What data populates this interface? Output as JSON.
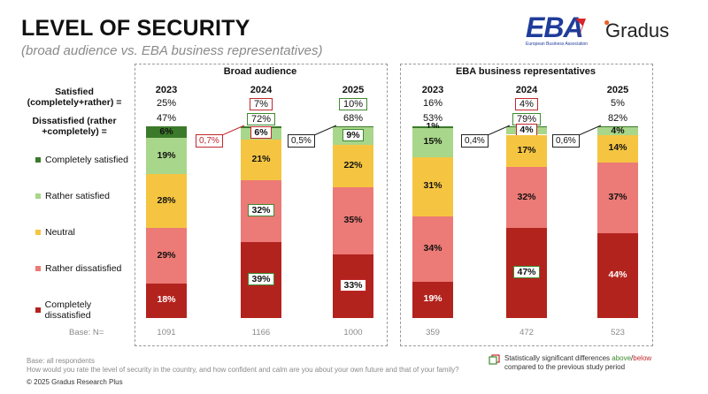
{
  "header": {
    "title": "LEVEL OF SECURITY",
    "subtitle": "(broad audience vs. EBA business representatives)"
  },
  "logos": {
    "eba_letters": "EBA",
    "eba_caption": "European Business Association",
    "gradus": "Gradus"
  },
  "rows": {
    "satisfied_label": "Satisfied (completely+rather) =",
    "dissatisfied_label": "Dissatisfied (rather +completely) =",
    "base_label": "Base: N="
  },
  "colors": {
    "completely_satisfied": "#3b7a2a",
    "rather_satisfied": "#a8d68a",
    "neutral": "#f5c542",
    "rather_dissatisfied": "#ec7a76",
    "completely_dissatisfied": "#b3231e",
    "significant_up": "#3d8b2f",
    "significant_down": "#c0282c"
  },
  "legend": [
    {
      "name": "Completely satisfied",
      "color": "#3b7a2a"
    },
    {
      "name": "Rather satisfied",
      "color": "#a8d68a"
    },
    {
      "name": "Neutral",
      "color": "#f5c542"
    },
    {
      "name": "Rather dissatisfied",
      "color": "#ec7a76"
    },
    {
      "name": "Completely dissatisfied",
      "color": "#b3231e"
    }
  ],
  "chart_data": {
    "type": "bar",
    "stacked": true,
    "units": "%",
    "groups": [
      {
        "name": "Broad audience",
        "bars": [
          {
            "year": "2023",
            "satisfied": "25%",
            "dissatisfied": "47%",
            "base": "1091",
            "values": [
              6,
              19,
              28,
              29,
              18
            ],
            "labels": [
              "6%",
              "19%",
              "28%",
              "29%",
              "18%"
            ],
            "sig": [
              null,
              null,
              null,
              null,
              null
            ],
            "sat_sig": null,
            "dis_sig": null,
            "callout": null
          },
          {
            "year": "2024",
            "satisfied": "7%",
            "dissatisfied": "72%",
            "base": "1166",
            "values": [
              0.7,
              6,
              21,
              32,
              39
            ],
            "labels": [
              "",
              "6%",
              "21%",
              "32%",
              "39%"
            ],
            "sig": [
              null,
              "down",
              null,
              "up",
              "up"
            ],
            "sat_sig": "down",
            "dis_sig": "up",
            "callout": {
              "text": "0,7%",
              "sig": "down"
            }
          },
          {
            "year": "2025",
            "satisfied": "10%",
            "dissatisfied": "68%",
            "base": "1000",
            "values": [
              0.5,
              9,
              22,
              35,
              33
            ],
            "labels": [
              "",
              "9%",
              "22%",
              "35%",
              "33%"
            ],
            "sig": [
              null,
              "up",
              null,
              null,
              "down"
            ],
            "sat_sig": "up",
            "dis_sig": null,
            "callout": {
              "text": "0,5%",
              "sig": null
            }
          }
        ]
      },
      {
        "name": "EBA business representatives",
        "bars": [
          {
            "year": "2023",
            "satisfied": "16%",
            "dissatisfied": "53%",
            "base": "359",
            "values": [
              1,
              15,
              31,
              34,
              19
            ],
            "labels": [
              "1%",
              "15%",
              "31%",
              "34%",
              "19%"
            ],
            "sig": [
              null,
              null,
              null,
              null,
              null
            ],
            "sat_sig": null,
            "dis_sig": null,
            "callout": null
          },
          {
            "year": "2024",
            "satisfied": "4%",
            "dissatisfied": "79%",
            "base": "472",
            "values": [
              0.4,
              4,
              17,
              32,
              47
            ],
            "labels": [
              "",
              "4%",
              "17%",
              "32%",
              "47%"
            ],
            "sig": [
              null,
              "down",
              null,
              null,
              "up"
            ],
            "sat_sig": "down",
            "dis_sig": "up",
            "callout": {
              "text": "0,4%",
              "sig": null
            }
          },
          {
            "year": "2025",
            "satisfied": "5%",
            "dissatisfied": "82%",
            "base": "523",
            "values": [
              0.6,
              4,
              14,
              37,
              44
            ],
            "labels": [
              "",
              "4%",
              "14%",
              "37%",
              "44%"
            ],
            "sig": [
              null,
              null,
              null,
              null,
              null
            ],
            "sat_sig": null,
            "dis_sig": null,
            "callout": {
              "text": "0,6%",
              "sig": null
            }
          }
        ]
      }
    ]
  },
  "footer": {
    "base_note": "Base: all respondents",
    "question": "How would you rate the level of security in the country, and how confident and calm are you about your own future and that of your family?",
    "copyright": "© 2025 Gradus Research Plus",
    "sig_note_1": "Statistically significant differences ",
    "sig_note_above": "above",
    "sig_note_sep": "/",
    "sig_note_below": "below",
    "sig_note_2": "compared to the previous study period"
  }
}
